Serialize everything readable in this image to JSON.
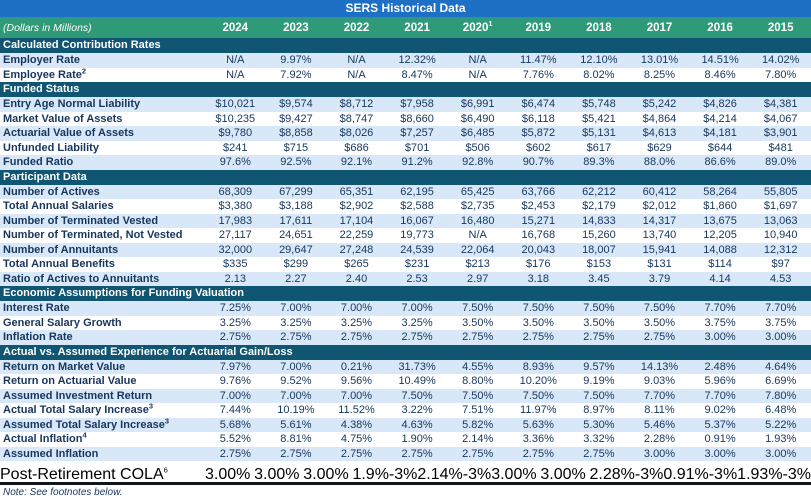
{
  "title": "SERS Historical Data",
  "note": "Note: See footnotes below.",
  "colors": {
    "title_bar": "#1D70C6",
    "year_header": "#2E9A78",
    "section_bar": "#105572",
    "alt_row": "#D8E8F8",
    "text": "#17365D",
    "bottom_rule": "#10161E"
  },
  "header": {
    "label": "(Dollars in Millions)",
    "years": [
      {
        "label": "2024",
        "sup": ""
      },
      {
        "label": "2023",
        "sup": ""
      },
      {
        "label": "2022",
        "sup": ""
      },
      {
        "label": "2021",
        "sup": ""
      },
      {
        "label": "2020",
        "sup": "1"
      },
      {
        "label": "2019",
        "sup": ""
      },
      {
        "label": "2018",
        "sup": ""
      },
      {
        "label": "2017",
        "sup": ""
      },
      {
        "label": "2016",
        "sup": ""
      },
      {
        "label": "2015",
        "sup": ""
      }
    ]
  },
  "sections": [
    {
      "heading": "Calculated Contribution Rates",
      "rows": [
        {
          "label": "Employer Rate",
          "sup": "",
          "values": [
            "N/A",
            "9.97%",
            "N/A",
            "12.32%",
            "N/A",
            "11.47%",
            "12.10%",
            "13.01%",
            "14.51%",
            "14.02%"
          ]
        },
        {
          "label": "Employee Rate",
          "sup": "2",
          "values": [
            "N/A",
            "7.92%",
            "N/A",
            "8.47%",
            "N/A",
            "7.76%",
            "8.02%",
            "8.25%",
            "8.46%",
            "7.80%"
          ]
        }
      ]
    },
    {
      "heading": "Funded Status",
      "rows": [
        {
          "label": "Entry Age Normal Liability",
          "sup": "",
          "values": [
            "$10,021",
            "$9,574",
            "$8,712",
            "$7,958",
            "$6,991",
            "$6,474",
            "$5,748",
            "$5,242",
            "$4,826",
            "$4,381"
          ]
        },
        {
          "label": "Market Value of Assets",
          "sup": "",
          "values": [
            "$10,235",
            "$9,427",
            "$8,747",
            "$8,660",
            "$6,490",
            "$6,118",
            "$5,421",
            "$4,864",
            "$4,214",
            "$4,067"
          ]
        },
        {
          "label": "Actuarial Value of Assets",
          "sup": "",
          "values": [
            "$9,780",
            "$8,858",
            "$8,026",
            "$7,257",
            "$6,485",
            "$5,872",
            "$5,131",
            "$4,613",
            "$4,181",
            "$3,901"
          ]
        },
        {
          "label": "Unfunded Liability",
          "sup": "",
          "values": [
            "$241",
            "$715",
            "$686",
            "$701",
            "$506",
            "$602",
            "$617",
            "$629",
            "$644",
            "$481"
          ]
        },
        {
          "label": "Funded Ratio",
          "sup": "",
          "values": [
            "97.6%",
            "92.5%",
            "92.1%",
            "91.2%",
            "92.8%",
            "90.7%",
            "89.3%",
            "88.0%",
            "86.6%",
            "89.0%"
          ]
        }
      ]
    },
    {
      "heading": "Participant Data",
      "rows": [
        {
          "label": "Number of Actives",
          "sup": "",
          "values": [
            "68,309",
            "67,299",
            "65,351",
            "62,195",
            "65,425",
            "63,766",
            "62,212",
            "60,412",
            "58,264",
            "55,805"
          ]
        },
        {
          "label": "Total Annual Salaries",
          "sup": "",
          "values": [
            "$3,380",
            "$3,188",
            "$2,902",
            "$2,588",
            "$2,735",
            "$2,453",
            "$2,179",
            "$2,012",
            "$1,860",
            "$1,697"
          ]
        },
        {
          "label": "Number of Terminated Vested",
          "sup": "",
          "values": [
            "17,983",
            "17,611",
            "17,104",
            "16,067",
            "16,480",
            "15,271",
            "14,833",
            "14,317",
            "13,675",
            "13,063"
          ]
        },
        {
          "label": "Number of Terminated, Not Vested",
          "sup": "",
          "values": [
            "27,117",
            "24,651",
            "22,259",
            "19,773",
            "N/A",
            "16,768",
            "15,260",
            "13,740",
            "12,205",
            "10,940"
          ]
        },
        {
          "label": "Number of Annuitants",
          "sup": "",
          "values": [
            "32,000",
            "29,647",
            "27,248",
            "24,539",
            "22,064",
            "20,043",
            "18,007",
            "15,941",
            "14,088",
            "12,312"
          ]
        },
        {
          "label": "Total Annual Benefits",
          "sup": "",
          "values": [
            "$335",
            "$299",
            "$265",
            "$231",
            "$213",
            "$176",
            "$153",
            "$131",
            "$114",
            "$97"
          ]
        },
        {
          "label": "Ratio of Actives to Annuitants",
          "sup": "",
          "values": [
            "2.13",
            "2.27",
            "2.40",
            "2.53",
            "2.97",
            "3.18",
            "3.45",
            "3.79",
            "4.14",
            "4.53"
          ]
        }
      ]
    },
    {
      "heading": "Economic Assumptions for Funding Valuation",
      "rows": [
        {
          "label": "Interest Rate",
          "sup": "",
          "values": [
            "7.25%",
            "7.00%",
            "7.00%",
            "7.00%",
            "7.50%",
            "7.50%",
            "7.50%",
            "7.50%",
            "7.70%",
            "7.70%"
          ]
        },
        {
          "label": "General Salary Growth",
          "sup": "",
          "values": [
            "3.25%",
            "3.25%",
            "3.25%",
            "3.25%",
            "3.50%",
            "3.50%",
            "3.50%",
            "3.50%",
            "3.75%",
            "3.75%"
          ]
        },
        {
          "label": "Inflation Rate",
          "sup": "",
          "values": [
            "2.75%",
            "2.75%",
            "2.75%",
            "2.75%",
            "2.75%",
            "2.75%",
            "2.75%",
            "2.75%",
            "3.00%",
            "3.00%"
          ]
        }
      ]
    },
    {
      "heading": "Actual vs. Assumed Experience for Actuarial Gain/Loss",
      "rows": [
        {
          "label": "Return on Market Value",
          "sup": "",
          "values": [
            "7.97%",
            "7.00%",
            "0.21%",
            "31.73%",
            "4.55%",
            "8.93%",
            "9.57%",
            "14.13%",
            "2.48%",
            "4.64%"
          ]
        },
        {
          "label": "Return on Actuarial Value",
          "sup": "",
          "values": [
            "9.76%",
            "9.52%",
            "9.56%",
            "10.49%",
            "8.80%",
            "10.20%",
            "9.19%",
            "9.03%",
            "5.96%",
            "6.69%"
          ]
        },
        {
          "label": "Assumed Investment Return",
          "sup": "",
          "values": [
            "7.00%",
            "7.00%",
            "7.00%",
            "7.50%",
            "7.50%",
            "7.50%",
            "7.50%",
            "7.70%",
            "7.70%",
            "7.80%"
          ]
        },
        {
          "label": "Actual Total Salary Increase",
          "sup": "3",
          "values": [
            "7.44%",
            "10.19%",
            "11.52%",
            "3.22%",
            "7.51%",
            "11.97%",
            "8.97%",
            "8.11%",
            "9.02%",
            "6.48%"
          ]
        },
        {
          "label": "Assumed Total Salary Increase",
          "sup": "3",
          "values": [
            "5.68%",
            "5.61%",
            "4.38%",
            "4.63%",
            "5.82%",
            "5.63%",
            "5.30%",
            "5.46%",
            "5.37%",
            "5.22%"
          ]
        },
        {
          "label": "Actual Inflation",
          "sup": "4",
          "values": [
            "5.52%",
            "8.81%",
            "4.75%",
            "1.90%",
            "2.14%",
            "3.36%",
            "3.32%",
            "2.28%",
            "0.91%",
            "1.93%"
          ]
        },
        {
          "label": "Assumed Inflation",
          "sup": "",
          "values": [
            "2.75%",
            "2.75%",
            "2.75%",
            "2.75%",
            "2.75%",
            "2.75%",
            "2.75%",
            "3.00%",
            "3.00%",
            "3.00%"
          ]
        }
      ]
    }
  ],
  "cola_row": {
    "label": "Post-Retirement COLA",
    "sup": "6",
    "values": [
      "3.00%",
      "3.00%",
      "3.00%",
      "1.9%-3%",
      "2.14%-3%",
      "3.00%",
      "3.00%",
      "2.28%-3%",
      "0.91%-3%",
      "1.93%-3%"
    ]
  }
}
